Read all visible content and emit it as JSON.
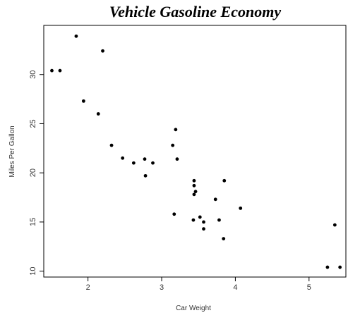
{
  "chart_data": {
    "type": "scatter",
    "title": "Vehicle Gasoline Economy",
    "xlabel": "Car Weight",
    "ylabel": "Miles Per Gallon",
    "xlim": [
      1.4,
      5.5
    ],
    "ylim": [
      9.4,
      35
    ],
    "xticks": [
      2,
      3,
      4,
      5
    ],
    "yticks": [
      10,
      15,
      20,
      25,
      30
    ],
    "grid": false,
    "legend": "none",
    "marker_color": "#000000",
    "points": [
      {
        "x": 1.51,
        "y": 30.4
      },
      {
        "x": 1.62,
        "y": 30.4
      },
      {
        "x": 1.84,
        "y": 33.9
      },
      {
        "x": 1.94,
        "y": 27.3
      },
      {
        "x": 2.14,
        "y": 26.0
      },
      {
        "x": 2.2,
        "y": 32.4
      },
      {
        "x": 2.32,
        "y": 22.8
      },
      {
        "x": 2.47,
        "y": 21.5
      },
      {
        "x": 2.62,
        "y": 21.0
      },
      {
        "x": 2.77,
        "y": 21.4
      },
      {
        "x": 2.78,
        "y": 19.7
      },
      {
        "x": 2.88,
        "y": 21.0
      },
      {
        "x": 3.15,
        "y": 22.8
      },
      {
        "x": 3.17,
        "y": 15.8
      },
      {
        "x": 3.19,
        "y": 24.4
      },
      {
        "x": 3.21,
        "y": 21.4
      },
      {
        "x": 3.43,
        "y": 15.2
      },
      {
        "x": 3.44,
        "y": 19.2
      },
      {
        "x": 3.44,
        "y": 18.7
      },
      {
        "x": 3.44,
        "y": 17.8
      },
      {
        "x": 3.46,
        "y": 18.1
      },
      {
        "x": 3.52,
        "y": 15.5
      },
      {
        "x": 3.57,
        "y": 15.0
      },
      {
        "x": 3.57,
        "y": 14.3
      },
      {
        "x": 3.73,
        "y": 17.3
      },
      {
        "x": 3.78,
        "y": 15.2
      },
      {
        "x": 3.84,
        "y": 13.3
      },
      {
        "x": 3.85,
        "y": 19.2
      },
      {
        "x": 4.07,
        "y": 16.4
      },
      {
        "x": 5.25,
        "y": 10.4
      },
      {
        "x": 5.35,
        "y": 14.7
      },
      {
        "x": 5.42,
        "y": 10.4
      }
    ]
  }
}
